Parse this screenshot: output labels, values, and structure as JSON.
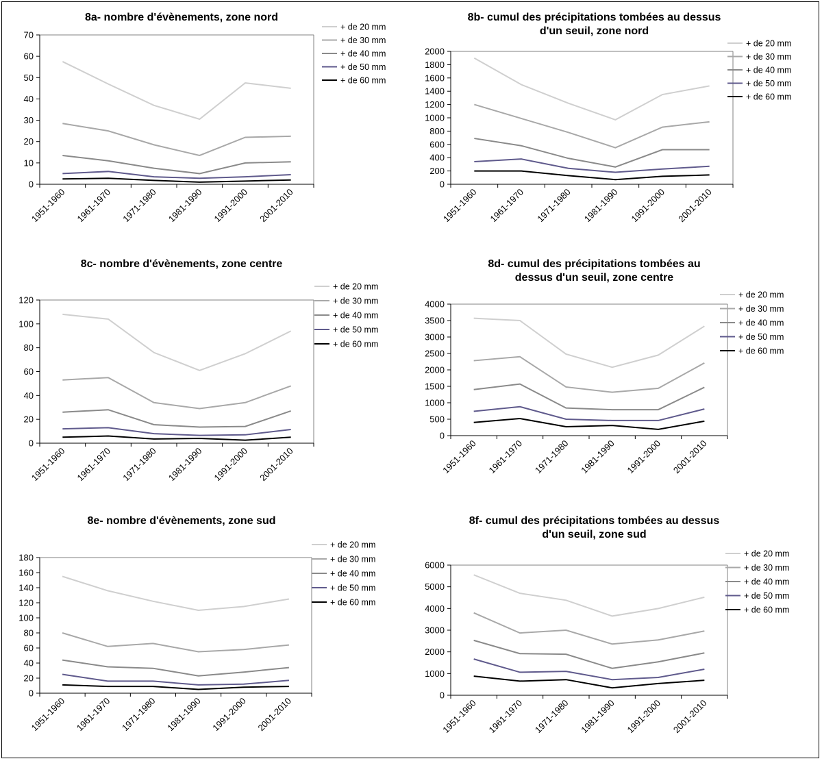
{
  "colors": {
    "+ de 20 mm": "#cfcfcf",
    "+ de 30 mm": "#a8a8a8",
    "+ de 40 mm": "#8a8a8a",
    "+ de 50 mm": "#5f5a8c",
    "+ de 60 mm": "#000000"
  },
  "chart_data": [
    {
      "id": "8a",
      "type": "line",
      "title_lines": [
        "8a- nombre d'évènements, zone nord"
      ],
      "categories": [
        "1951-1960",
        "1961-1970",
        "1971-1980",
        "1981-1990",
        "1991-2000",
        "2001-2010"
      ],
      "ylim": [
        0,
        70
      ],
      "yticks": [
        0,
        10,
        20,
        30,
        40,
        50,
        60,
        70
      ],
      "series": [
        {
          "name": "+ de 20 mm",
          "values": [
            57.5,
            47,
            37,
            30.5,
            47.5,
            45
          ]
        },
        {
          "name": "+ de 30 mm",
          "values": [
            28.5,
            25,
            18.5,
            13.5,
            22,
            22.5
          ]
        },
        {
          "name": "+ de 40 mm",
          "values": [
            13.5,
            11,
            7.5,
            5,
            10,
            10.5
          ]
        },
        {
          "name": "+ de 50 mm",
          "values": [
            5,
            6,
            3.5,
            2.8,
            3.5,
            4.5
          ]
        },
        {
          "name": "+ de 60 mm",
          "values": [
            2.5,
            2.8,
            1.8,
            1,
            1.5,
            2
          ]
        }
      ]
    },
    {
      "id": "8b",
      "type": "line",
      "title_lines": [
        "8b- cumul des précipitations tombées au dessus",
        "d'un seuil, zone nord"
      ],
      "categories": [
        "1951-1960",
        "1961-1970",
        "1971-1980",
        "1981-1990",
        "1991-2000",
        "2001-2010"
      ],
      "ylim": [
        0,
        2000
      ],
      "yticks": [
        0,
        200,
        400,
        600,
        800,
        1000,
        1200,
        1400,
        1600,
        1800,
        2000
      ],
      "series": [
        {
          "name": "+ de 20 mm",
          "values": [
            1900,
            1500,
            1220,
            970,
            1350,
            1480
          ]
        },
        {
          "name": "+ de 30 mm",
          "values": [
            1200,
            990,
            780,
            550,
            860,
            940
          ]
        },
        {
          "name": "+ de 40 mm",
          "values": [
            690,
            580,
            390,
            260,
            520,
            520
          ]
        },
        {
          "name": "+ de 50 mm",
          "values": [
            340,
            380,
            240,
            180,
            230,
            270
          ]
        },
        {
          "name": "+ de 60 mm",
          "values": [
            200,
            200,
            130,
            70,
            120,
            140
          ]
        }
      ]
    },
    {
      "id": "8c",
      "type": "line",
      "title_lines": [
        "8c- nombre d'évènements, zone centre"
      ],
      "categories": [
        "1951-1960",
        "1961-1970",
        "1971-1980",
        "1981-1990",
        "1991-2000",
        "2001-2010"
      ],
      "ylim": [
        0,
        120
      ],
      "yticks": [
        0,
        20,
        40,
        60,
        80,
        100,
        120
      ],
      "series": [
        {
          "name": "+ de 20 mm",
          "values": [
            108,
            104,
            76,
            61,
            75,
            94
          ]
        },
        {
          "name": "+ de 30 mm",
          "values": [
            53,
            55,
            34,
            29,
            34,
            48
          ]
        },
        {
          "name": "+ de 40 mm",
          "values": [
            26,
            28,
            15.5,
            13.5,
            14,
            27
          ]
        },
        {
          "name": "+ de 50 mm",
          "values": [
            12,
            13,
            8,
            6.5,
            7,
            11.5
          ]
        },
        {
          "name": "+ de 60 mm",
          "values": [
            5,
            6,
            3.5,
            4,
            2.5,
            5
          ]
        }
      ]
    },
    {
      "id": "8d",
      "type": "line",
      "title_lines": [
        "8d- cumul des précipitations tombées au",
        "dessus d'un seuil, zone centre"
      ],
      "categories": [
        "1951-1960",
        "1961-1970",
        "1971-1980",
        "1981-1990",
        "1991-2000",
        "2001-2010"
      ],
      "ylim": [
        0,
        4000
      ],
      "yticks": [
        0,
        500,
        1000,
        1500,
        2000,
        2500,
        3000,
        3500,
        4000
      ],
      "series": [
        {
          "name": "+ de 20 mm",
          "values": [
            3570,
            3500,
            2480,
            2080,
            2450,
            3330
          ]
        },
        {
          "name": "+ de 30 mm",
          "values": [
            2280,
            2400,
            1480,
            1320,
            1440,
            2210
          ]
        },
        {
          "name": "+ de 40 mm",
          "values": [
            1400,
            1570,
            840,
            790,
            790,
            1470
          ]
        },
        {
          "name": "+ de 50 mm",
          "values": [
            740,
            880,
            500,
            460,
            460,
            810
          ]
        },
        {
          "name": "+ de 60 mm",
          "values": [
            400,
            520,
            270,
            310,
            190,
            440
          ]
        }
      ]
    },
    {
      "id": "8e",
      "type": "line",
      "title_lines": [
        "8e- nombre d'évènements, zone sud"
      ],
      "categories": [
        "1951-1960",
        "1961-1970",
        "1971-1980",
        "1981-1990",
        "1991-2000",
        "2001-2010"
      ],
      "ylim": [
        0,
        180
      ],
      "yticks": [
        0,
        20,
        40,
        60,
        80,
        100,
        120,
        140,
        160,
        180
      ],
      "series": [
        {
          "name": "+ de 20 mm",
          "values": [
            155,
            136,
            122,
            110,
            115,
            125
          ]
        },
        {
          "name": "+ de 30 mm",
          "values": [
            80,
            62,
            66,
            55,
            58,
            64
          ]
        },
        {
          "name": "+ de 40 mm",
          "values": [
            44,
            35,
            33,
            23,
            28,
            34
          ]
        },
        {
          "name": "+ de 50 mm",
          "values": [
            25,
            16,
            16,
            11,
            12,
            17
          ]
        },
        {
          "name": "+ de 60 mm",
          "values": [
            11,
            9,
            9,
            5,
            8,
            9
          ]
        }
      ]
    },
    {
      "id": "8f",
      "type": "line",
      "title_lines": [
        "8f- cumul des précipitations tombées au dessus",
        "d'un seuil, zone sud"
      ],
      "categories": [
        "1951-1960",
        "1961-1970",
        "1971-1980",
        "1981-1990",
        "1991-2000",
        "2001-2010"
      ],
      "ylim": [
        0,
        6000
      ],
      "yticks": [
        0,
        1000,
        2000,
        3000,
        4000,
        5000,
        6000
      ],
      "series": [
        {
          "name": "+ de 20 mm",
          "values": [
            5550,
            4700,
            4380,
            3650,
            4000,
            4520
          ]
        },
        {
          "name": "+ de 30 mm",
          "values": [
            3800,
            2870,
            3000,
            2360,
            2550,
            2960
          ]
        },
        {
          "name": "+ de 40 mm",
          "values": [
            2530,
            1920,
            1890,
            1240,
            1540,
            1950
          ]
        },
        {
          "name": "+ de 50 mm",
          "values": [
            1670,
            1060,
            1100,
            720,
            820,
            1200
          ]
        },
        {
          "name": "+ de 60 mm",
          "values": [
            880,
            650,
            720,
            340,
            540,
            690
          ]
        }
      ]
    }
  ]
}
